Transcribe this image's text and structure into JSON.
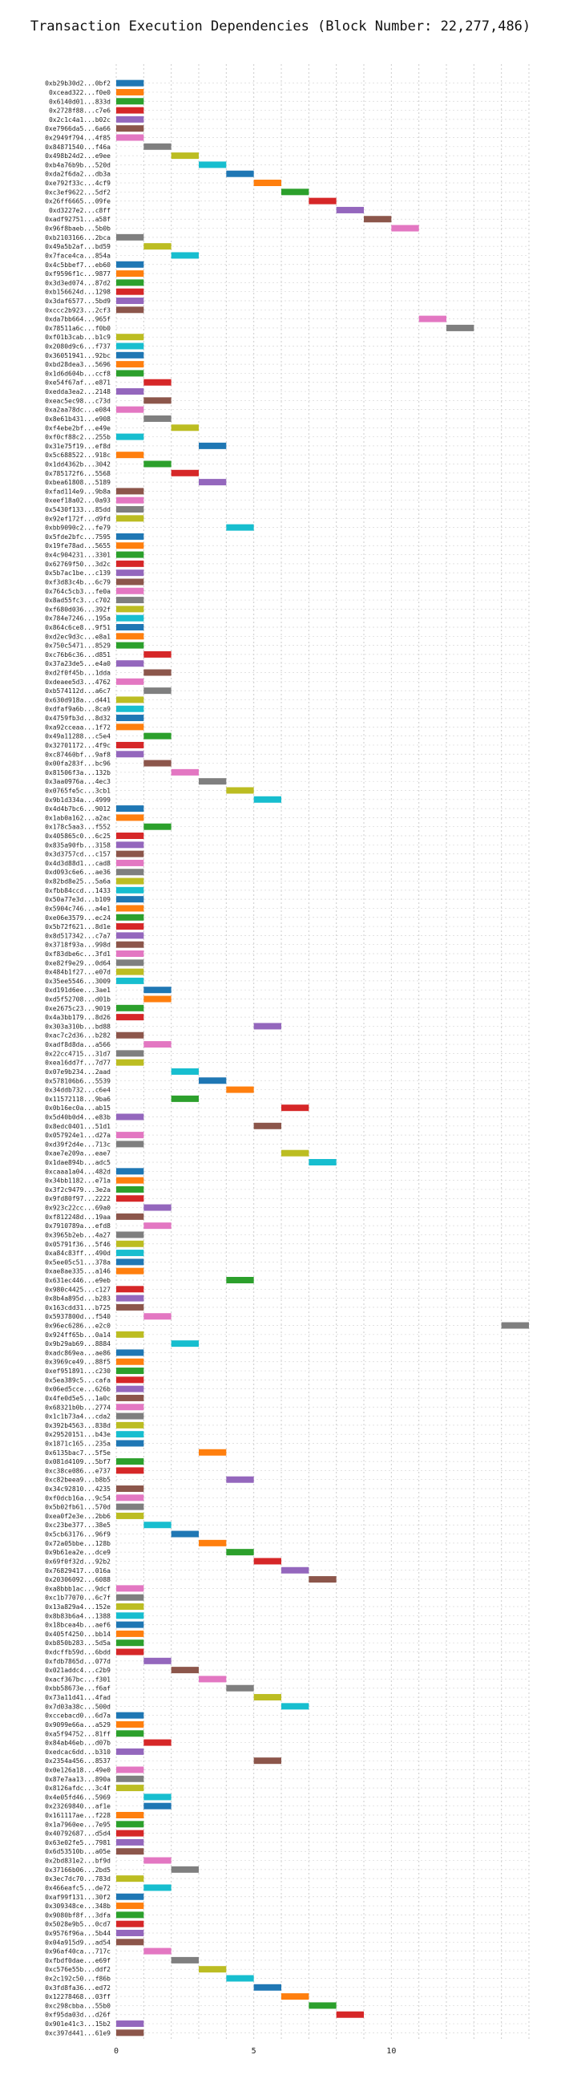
{
  "chart_data": {
    "type": "bar",
    "title": "Transaction Execution Dependencies (Block Number: 22,277,486)",
    "xlabel": "",
    "ylabel": "",
    "xlim": [
      0,
      15
    ],
    "x_ticks": [
      0,
      5,
      10
    ],
    "grid": true,
    "orientation": "horizontal",
    "bar_duration": 1,
    "palette": [
      "#1f77b4",
      "#ff7f0e",
      "#2ca02c",
      "#d62728",
      "#9467bd",
      "#8c564b",
      "#e377c2",
      "#7f7f7f",
      "#bcbd22",
      "#17becf"
    ],
    "transactions": [
      {
        "label": "0xb29b30d2...0bf2",
        "start": 0
      },
      {
        "label": "0xcead322...f0e0",
        "start": 0
      },
      {
        "label": "0x6140d01...833d",
        "start": 0
      },
      {
        "label": "0x2728f88...c7e6",
        "start": 0
      },
      {
        "label": "0x2c1c4a1...b02c",
        "start": 0
      },
      {
        "label": "0xe7966da5...6a66",
        "start": 0
      },
      {
        "label": "0x2949f794...4f85",
        "start": 0
      },
      {
        "label": "0x84871540...f46a",
        "start": 1
      },
      {
        "label": "0x498b24d2...e9ee",
        "start": 2
      },
      {
        "label": "0xb4a76b9b...520d",
        "start": 3
      },
      {
        "label": "0xda2f6da2...db3a",
        "start": 4
      },
      {
        "label": "0xe792f33c...4cf9",
        "start": 5
      },
      {
        "label": "0xc3ef9622...5df2",
        "start": 6
      },
      {
        "label": "0x26ff6665...09fe",
        "start": 7
      },
      {
        "label": "0xd3227e2...c8ff",
        "start": 8
      },
      {
        "label": "0xadf92751...a58f",
        "start": 9
      },
      {
        "label": "0x96f8baeb...5b0b",
        "start": 10
      },
      {
        "label": "0xb2103166...2bca",
        "start": 0
      },
      {
        "label": "0x49a5b2af...bd59",
        "start": 1
      },
      {
        "label": "0x7face4ca...854a",
        "start": 2
      },
      {
        "label": "0x4c5bbef7...eb60",
        "start": 0
      },
      {
        "label": "0xf9596f1c...9877",
        "start": 0
      },
      {
        "label": "0x3d3ed074...87d2",
        "start": 0
      },
      {
        "label": "0xb156624d...1298",
        "start": 0
      },
      {
        "label": "0x3daf6577...5bd9",
        "start": 0
      },
      {
        "label": "0xccc2b923...2cf3",
        "start": 0
      },
      {
        "label": "0xda7bb664...965f",
        "start": 11
      },
      {
        "label": "0x78511a6c...f0b0",
        "start": 12
      },
      {
        "label": "0xf01b3cab...b1c9",
        "start": 0
      },
      {
        "label": "0x2080d9c6...f737",
        "start": 0
      },
      {
        "label": "0x36051941...92bc",
        "start": 0
      },
      {
        "label": "0xbd28dea3...5696",
        "start": 0
      },
      {
        "label": "0x1d6d604b...ccf8",
        "start": 0
      },
      {
        "label": "0xe54f67af...e871",
        "start": 1
      },
      {
        "label": "0xedda3ea2...2148",
        "start": 0
      },
      {
        "label": "0xeac5ec98...c73d",
        "start": 1
      },
      {
        "label": "0xa2aa78dc...e084",
        "start": 0
      },
      {
        "label": "0x8e61b431...e908",
        "start": 1
      },
      {
        "label": "0xf4ebe2bf...e49e",
        "start": 2
      },
      {
        "label": "0xf0cf88c2...255b",
        "start": 0
      },
      {
        "label": "0x31e75f19...ef8d",
        "start": 3
      },
      {
        "label": "0x5c688522...918c",
        "start": 0
      },
      {
        "label": "0x1dd4362b...3042",
        "start": 1
      },
      {
        "label": "0x785172f6...5568",
        "start": 2
      },
      {
        "label": "0xbea61808...5189",
        "start": 3
      },
      {
        "label": "0xfad114e9...9b8a",
        "start": 0
      },
      {
        "label": "0xeef18a02...0a93",
        "start": 0
      },
      {
        "label": "0x5430f133...85dd",
        "start": 0
      },
      {
        "label": "0x92ef172f...d9fd",
        "start": 0
      },
      {
        "label": "0xbb9090c2...fe79",
        "start": 4
      },
      {
        "label": "0x5fde2bfc...7595",
        "start": 0
      },
      {
        "label": "0x19fe78ad...5655",
        "start": 0
      },
      {
        "label": "0x4c904231...3301",
        "start": 0
      },
      {
        "label": "0x62769f50...3d2c",
        "start": 0
      },
      {
        "label": "0x5b7ac1be...c139",
        "start": 0
      },
      {
        "label": "0xf3d83c4b...6c79",
        "start": 0
      },
      {
        "label": "0x764c5cb3...fe0a",
        "start": 0
      },
      {
        "label": "0x8ad55fc3...c702",
        "start": 0
      },
      {
        "label": "0xf680d036...392f",
        "start": 0
      },
      {
        "label": "0x784e7246...195a",
        "start": 0
      },
      {
        "label": "0x864c6ce8...9f51",
        "start": 0
      },
      {
        "label": "0xd2ec9d3c...e8a1",
        "start": 0
      },
      {
        "label": "0x750c5471...8529",
        "start": 0
      },
      {
        "label": "0xc76b6c36...d851",
        "start": 1
      },
      {
        "label": "0x37a23de5...e4a0",
        "start": 0
      },
      {
        "label": "0xd2f0f45b...1dda",
        "start": 1
      },
      {
        "label": "0xdeaee5d3...4762",
        "start": 0
      },
      {
        "label": "0xb574112d...a6c7",
        "start": 1
      },
      {
        "label": "0x630d918a...d441",
        "start": 0
      },
      {
        "label": "0xdfaf9a6b...8ca9",
        "start": 0
      },
      {
        "label": "0x4759fb3d...8d32",
        "start": 0
      },
      {
        "label": "0xa92cceaa...1f72",
        "start": 0
      },
      {
        "label": "0x49a11288...c5e4",
        "start": 1
      },
      {
        "label": "0x32701172...4f9c",
        "start": 0
      },
      {
        "label": "0xc87460bf...9af8",
        "start": 0
      },
      {
        "label": "0x00fa283f...bc96",
        "start": 1
      },
      {
        "label": "0x81506f3a...132b",
        "start": 2
      },
      {
        "label": "0x3aa0976a...4ec3",
        "start": 3
      },
      {
        "label": "0x0765fe5c...3cb1",
        "start": 4
      },
      {
        "label": "0x9b1d334a...4999",
        "start": 5
      },
      {
        "label": "0x4d4b7bc6...9012",
        "start": 0
      },
      {
        "label": "0x1ab0a162...a2ac",
        "start": 0
      },
      {
        "label": "0x178c5aa3...f552",
        "start": 1
      },
      {
        "label": "0x405865c0...6c25",
        "start": 0
      },
      {
        "label": "0x835a90fb...3158",
        "start": 0
      },
      {
        "label": "0x3d3757cd...c157",
        "start": 0
      },
      {
        "label": "0x4d3d88d1...cad8",
        "start": 0
      },
      {
        "label": "0xd093c6e6...ae36",
        "start": 0
      },
      {
        "label": "0x82bd8e25...5a6a",
        "start": 0
      },
      {
        "label": "0xfbb84ccd...1433",
        "start": 0
      },
      {
        "label": "0x50a77e3d...b109",
        "start": 0
      },
      {
        "label": "0x5904c746...a4e1",
        "start": 0
      },
      {
        "label": "0xe06e3579...ec24",
        "start": 0
      },
      {
        "label": "0x5b72f621...8d1e",
        "start": 0
      },
      {
        "label": "0x8d517342...c7a7",
        "start": 0
      },
      {
        "label": "0x3718f93a...998d",
        "start": 0
      },
      {
        "label": "0xf83dbe6c...3fd1",
        "start": 0
      },
      {
        "label": "0xe82f9e29...0d64",
        "start": 0
      },
      {
        "label": "0x484b1f27...e07d",
        "start": 0
      },
      {
        "label": "0x35ee5546...3009",
        "start": 0
      },
      {
        "label": "0xd191d6ee...3ae1",
        "start": 1
      },
      {
        "label": "0xd5f52708...d01b",
        "start": 1
      },
      {
        "label": "0xe2675c23...9019",
        "start": 0
      },
      {
        "label": "0x4a3bb179...8d26",
        "start": 0
      },
      {
        "label": "0x303a310b...bd88",
        "start": 5
      },
      {
        "label": "0xac7c2d36...b282",
        "start": 0
      },
      {
        "label": "0xadf8d8da...a566",
        "start": 1
      },
      {
        "label": "0x22cc4715...31d7",
        "start": 0
      },
      {
        "label": "0xea16dd7f...7d77",
        "start": 0
      },
      {
        "label": "0x07e9b234...2aad",
        "start": 2
      },
      {
        "label": "0x578106b6...5539",
        "start": 3
      },
      {
        "label": "0x34ddb732...c6e4",
        "start": 4
      },
      {
        "label": "0x11572118...9ba6",
        "start": 2
      },
      {
        "label": "0x0b16ec0a...ab15",
        "start": 6
      },
      {
        "label": "0x5d40b0d4...e83b",
        "start": 0
      },
      {
        "label": "0x8edc0401...51d1",
        "start": 5
      },
      {
        "label": "0x057924e1...d27a",
        "start": 0
      },
      {
        "label": "0xd39f2d4e...713c",
        "start": 0
      },
      {
        "label": "0xae7e209a...eae7",
        "start": 6
      },
      {
        "label": "0x1dae894b...adc5",
        "start": 7
      },
      {
        "label": "0xcaaa1a04...482d",
        "start": 0
      },
      {
        "label": "0x34bb1182...e71a",
        "start": 0
      },
      {
        "label": "0x3f2c9479...3e2a",
        "start": 0
      },
      {
        "label": "0x9fd80f97...2222",
        "start": 0
      },
      {
        "label": "0x923c22cc...69a0",
        "start": 1
      },
      {
        "label": "0xf812248d...19aa",
        "start": 0
      },
      {
        "label": "0x7910789a...efd8",
        "start": 1
      },
      {
        "label": "0x3965b2eb...4a27",
        "start": 0
      },
      {
        "label": "0x05791f36...5f46",
        "start": 0
      },
      {
        "label": "0xa84c83ff...490d",
        "start": 0
      },
      {
        "label": "0x5ee05c51...378a",
        "start": 0
      },
      {
        "label": "0xae8ae335...a146",
        "start": 0
      },
      {
        "label": "0x631ec446...e9eb",
        "start": 4
      },
      {
        "label": "0x980c4425...c127",
        "start": 0
      },
      {
        "label": "0x8b4a895d...b283",
        "start": 0
      },
      {
        "label": "0x163cdd31...b725",
        "start": 0
      },
      {
        "label": "0x5937800d...f540",
        "start": 1
      },
      {
        "label": "0x96ec6286...e2c0",
        "start": 14
      },
      {
        "label": "0x924ff65b...0a14",
        "start": 0
      },
      {
        "label": "0x9b29ab69...8884",
        "start": 2
      },
      {
        "label": "0xadc869ea...ae86",
        "start": 0
      },
      {
        "label": "0x3969ce49...88f5",
        "start": 0
      },
      {
        "label": "0xef951891...c230",
        "start": 0
      },
      {
        "label": "0x5ea389c5...cafa",
        "start": 0
      },
      {
        "label": "0x06ed5cce...626b",
        "start": 0
      },
      {
        "label": "0x4fe0d5e5...1a0c",
        "start": 0
      },
      {
        "label": "0x68321b0b...2774",
        "start": 0
      },
      {
        "label": "0x1c1b73a4...cda2",
        "start": 0
      },
      {
        "label": "0x392b4563...838d",
        "start": 0
      },
      {
        "label": "0x29520151...b43e",
        "start": 0
      },
      {
        "label": "0x1871c165...235a",
        "start": 0
      },
      {
        "label": "0x6135bac7...5f5e",
        "start": 3
      },
      {
        "label": "0x081d4109...5bf7",
        "start": 0
      },
      {
        "label": "0xc38ce086...e737",
        "start": 0
      },
      {
        "label": "0xc82beea9...b8b5",
        "start": 4
      },
      {
        "label": "0x34c92810...4235",
        "start": 0
      },
      {
        "label": "0xf0dcb16a...9c54",
        "start": 0
      },
      {
        "label": "0x5b02fb61...570d",
        "start": 0
      },
      {
        "label": "0xea0f2e3e...2bb6",
        "start": 0
      },
      {
        "label": "0xc23be377...38e5",
        "start": 1
      },
      {
        "label": "0x5cb63176...96f9",
        "start": 2
      },
      {
        "label": "0x72a05bbe...128b",
        "start": 3
      },
      {
        "label": "0x9b61ea2e...dce9",
        "start": 4
      },
      {
        "label": "0x69f0f32d...92b2",
        "start": 5
      },
      {
        "label": "0x76829417...016a",
        "start": 6
      },
      {
        "label": "0x20306092...6088",
        "start": 7
      },
      {
        "label": "0xa8bbb1ac...9dcf",
        "start": 0
      },
      {
        "label": "0xc1b77070...6c7f",
        "start": 0
      },
      {
        "label": "0x13a829a4...152e",
        "start": 0
      },
      {
        "label": "0x8b83b6a4...1388",
        "start": 0
      },
      {
        "label": "0x18bcea4b...aef6",
        "start": 0
      },
      {
        "label": "0x405f4250...bb14",
        "start": 0
      },
      {
        "label": "0xb850b283...5d5a",
        "start": 0
      },
      {
        "label": "0xdcffb59d...6bdd",
        "start": 0
      },
      {
        "label": "0xfdb7865d...077d",
        "start": 1
      },
      {
        "label": "0x021addc4...c2b9",
        "start": 2
      },
      {
        "label": "0xacf367bc...f301",
        "start": 3
      },
      {
        "label": "0xbb58673e...f6af",
        "start": 4
      },
      {
        "label": "0x73a11d41...4fad",
        "start": 5
      },
      {
        "label": "0x7d03a38c...500d",
        "start": 6
      },
      {
        "label": "0xccebacd0...6d7a",
        "start": 0
      },
      {
        "label": "0x9099e66a...a529",
        "start": 0
      },
      {
        "label": "0xa5f94752...81ff",
        "start": 0
      },
      {
        "label": "0x84ab46eb...d07b",
        "start": 1
      },
      {
        "label": "0xedcac6dd...b310",
        "start": 0
      },
      {
        "label": "0x2354a456...8537",
        "start": 5
      },
      {
        "label": "0x0e126a18...49e0",
        "start": 0
      },
      {
        "label": "0x87e7aa13...890a",
        "start": 0
      },
      {
        "label": "0x8126afdc...3c4f",
        "start": 0
      },
      {
        "label": "0x4e05fd46...5969",
        "start": 1
      },
      {
        "label": "0x23269840...af1e",
        "start": 1
      },
      {
        "label": "0x161117ae...f228",
        "start": 0
      },
      {
        "label": "0x1a7960ee...7e95",
        "start": 0
      },
      {
        "label": "0x40792687...d5d4",
        "start": 0
      },
      {
        "label": "0x63e02fe5...7981",
        "start": 0
      },
      {
        "label": "0x6d53510b...a05e",
        "start": 0
      },
      {
        "label": "0x2bd831e2...bf9d",
        "start": 1
      },
      {
        "label": "0x37166b06...2bd5",
        "start": 2
      },
      {
        "label": "0x3ec7dc70...783d",
        "start": 0
      },
      {
        "label": "0x466eafc5...de72",
        "start": 1
      },
      {
        "label": "0xaf99f131...30f2",
        "start": 0
      },
      {
        "label": "0x309348ce...348b",
        "start": 0
      },
      {
        "label": "0x9080bf8f...3dfa",
        "start": 0
      },
      {
        "label": "0x5028e9b5...0cd7",
        "start": 0
      },
      {
        "label": "0x9576f96a...5b44",
        "start": 0
      },
      {
        "label": "0x04a915d9...ad54",
        "start": 0
      },
      {
        "label": "0x96af40ca...717c",
        "start": 1
      },
      {
        "label": "0xfbdf0dae...e69f",
        "start": 2
      },
      {
        "label": "0xc576e55b...ddf2",
        "start": 3
      },
      {
        "label": "0x2c192c50...f86b",
        "start": 4
      },
      {
        "label": "0x3fd8fa36...ed72",
        "start": 5
      },
      {
        "label": "0x12278468...03ff",
        "start": 6
      },
      {
        "label": "0xc298cbba...55b0",
        "start": 7
      },
      {
        "label": "0xf95da03d...d26f",
        "start": 8
      },
      {
        "label": "0x901e41c3...15b2",
        "start": 0
      },
      {
        "label": "0xc397d441...61e9",
        "start": 0
      }
    ]
  }
}
